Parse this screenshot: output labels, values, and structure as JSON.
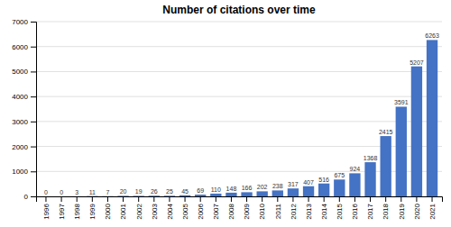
{
  "chart_data": {
    "type": "bar",
    "title": "Number of citations over time",
    "categories": [
      "1996",
      "1997",
      "1998",
      "1999",
      "2000",
      "2001",
      "2002",
      "2003",
      "2004",
      "2005",
      "2006",
      "2007",
      "2008",
      "2009",
      "2010",
      "2011",
      "2012",
      "2013",
      "2014",
      "2015",
      "2016",
      "2017",
      "2018",
      "2019",
      "2020",
      "2021"
    ],
    "values": [
      0,
      0,
      3,
      11,
      7,
      20,
      19,
      26,
      25,
      45,
      69,
      110,
      148,
      166,
      202,
      238,
      317,
      407,
      516,
      675,
      924,
      1368,
      2415,
      3591,
      5207,
      6263
    ],
    "color": "#4472c4",
    "ylim": [
      0,
      7000
    ],
    "yticks": [
      0,
      1000,
      2000,
      3000,
      4000,
      5000,
      6000,
      7000
    ],
    "grid": true,
    "data_labels": true
  }
}
